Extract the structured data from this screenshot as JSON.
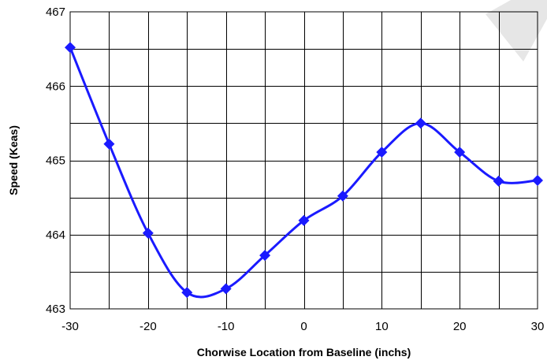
{
  "chart_data": {
    "type": "line",
    "title": "",
    "xlabel": "Chorwise Location from Baseline (inchs)",
    "ylabel": "Speed (Keas)",
    "xlim": [
      -30,
      30
    ],
    "ylim": [
      463,
      467
    ],
    "x_ticks": [
      -30,
      -20,
      -10,
      0,
      10,
      20,
      30
    ],
    "x_tick_labels": [
      "-30",
      "-20",
      "-10",
      "0",
      "10",
      "20",
      "30"
    ],
    "x_grid_step": 5,
    "y_ticks": [
      463,
      464,
      465,
      466,
      467
    ],
    "y_tick_labels": [
      "463",
      "464",
      "465",
      "466",
      "467"
    ],
    "y_grid_step": 0.5,
    "grid": true,
    "legend": "none",
    "colors": {
      "series": "#1a1aff",
      "grid": "#000000",
      "watermark": "#e6e6e6"
    },
    "series": [
      {
        "marker": "diamond",
        "smooth": true,
        "x": [
          -30,
          -25,
          -20,
          -15,
          -10,
          -5,
          0,
          5,
          10,
          15,
          20,
          25,
          30
        ],
        "y": [
          466.52,
          465.22,
          464.02,
          463.22,
          463.27,
          463.72,
          464.19,
          464.52,
          465.11,
          465.5,
          465.11,
          464.72,
          464.73
        ]
      }
    ]
  }
}
